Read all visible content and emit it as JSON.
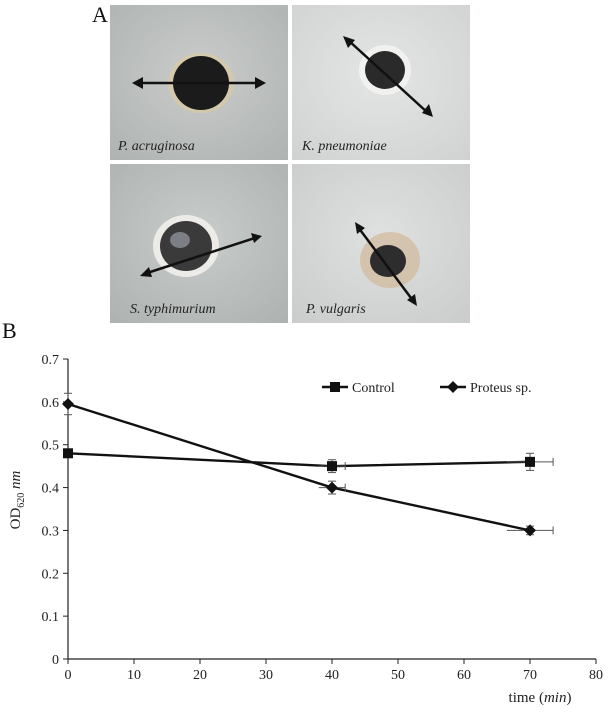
{
  "panel_a": {
    "letter": "A",
    "dishes": [
      {
        "label": "P. acruginosa",
        "zone": "dark"
      },
      {
        "label": "K. pneumoniae",
        "zone": "ring"
      },
      {
        "label": "S. typhimurium",
        "zone": "ring"
      },
      {
        "label": "P. vulgaris",
        "zone": "ring"
      }
    ]
  },
  "panel_b": {
    "letter": "B"
  },
  "chart_data": {
    "type": "line",
    "xlabel_prefix": "time (",
    "xlabel_unit": "min",
    "xlabel_suffix": ")",
    "ylabel_main": "OD",
    "ylabel_sub": "620",
    "ylabel_unit": "nm",
    "xlim": [
      0,
      80
    ],
    "ylim": [
      0,
      0.7
    ],
    "xticks": [
      0,
      10,
      20,
      30,
      40,
      50,
      60,
      70,
      80
    ],
    "yticks": [
      0,
      0.1,
      0.2,
      0.3,
      0.4,
      0.5,
      0.6,
      0.7
    ],
    "grid": false,
    "legend_position": "top-right",
    "series": [
      {
        "name": "Control",
        "marker": "square",
        "x": [
          0,
          40,
          70
        ],
        "y": [
          0.48,
          0.45,
          0.46
        ],
        "yerr": [
          0.0,
          0.015,
          0.02
        ],
        "xerr": [
          0,
          2,
          3.5
        ]
      },
      {
        "name": "Proteus sp.",
        "marker": "diamond",
        "x": [
          0,
          40,
          70
        ],
        "y": [
          0.595,
          0.4,
          0.3
        ],
        "yerr": [
          0.025,
          0.015,
          0.01
        ],
        "xerr": [
          0,
          2,
          3.5
        ]
      }
    ]
  }
}
